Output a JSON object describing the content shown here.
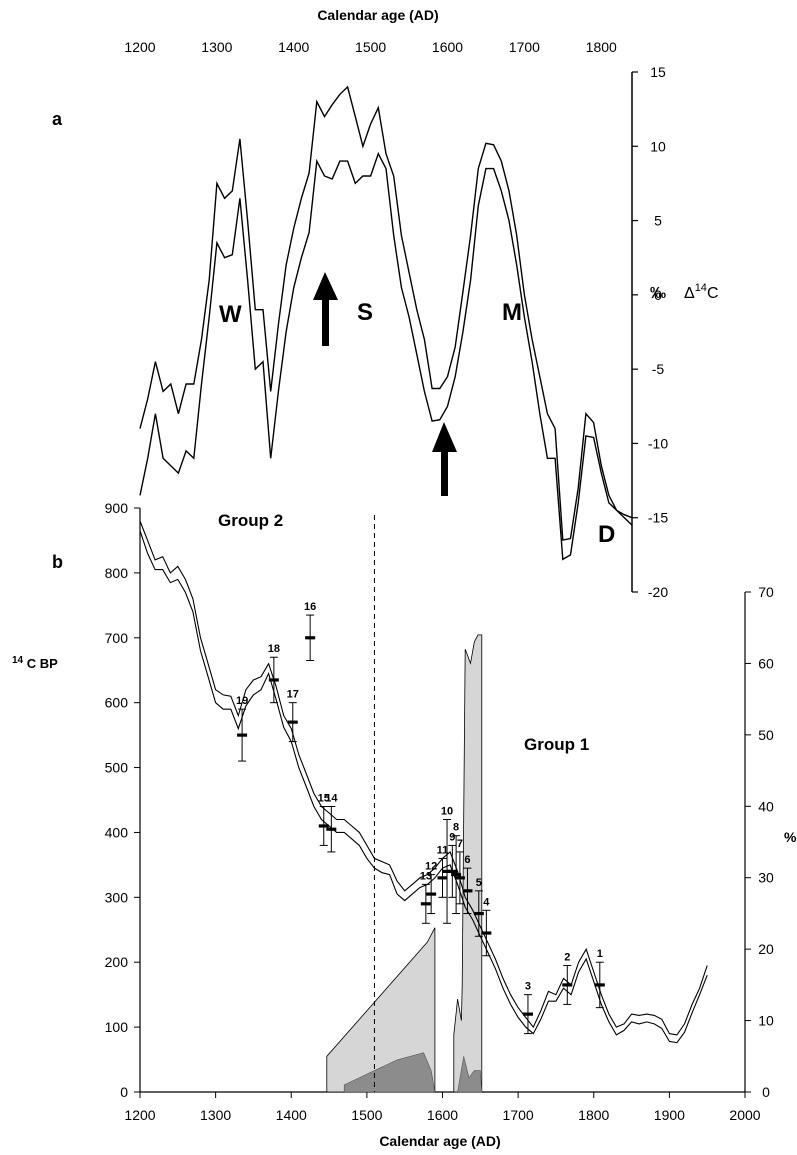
{
  "chart_data": [
    {
      "panel": "a",
      "type": "line",
      "xlabel": "Calendar age (AD)",
      "xlim": [
        1200,
        1840
      ],
      "xticks": [
        1200,
        1300,
        1400,
        1500,
        1600,
        1700,
        1800
      ],
      "ylabel": "‰  Δ14C",
      "ylim": [
        -20,
        15
      ],
      "yticks": [
        15,
        10,
        5,
        0,
        -5,
        -10,
        -15,
        -20
      ],
      "series": [
        {
          "x": [
            1200,
            1210,
            1220,
            1230,
            1240,
            1250,
            1260,
            1270,
            1280,
            1290,
            1300,
            1310,
            1320,
            1330,
            1340,
            1350,
            1360,
            1370,
            1380,
            1390,
            1400,
            1410,
            1420,
            1430,
            1440,
            1450,
            1460,
            1470,
            1480,
            1490,
            1500,
            1510,
            1520,
            1530,
            1540,
            1550,
            1560,
            1570,
            1580,
            1590,
            1600,
            1610,
            1620,
            1630,
            1640,
            1650,
            1660,
            1670,
            1680,
            1690,
            1700,
            1710,
            1720,
            1730,
            1740,
            1750,
            1760,
            1770,
            1780,
            1790,
            1800,
            1810,
            1820,
            1830,
            1840
          ],
          "y": [
            -9,
            -7,
            -4.5,
            -6.5,
            -6,
            -8,
            -6,
            -6,
            -3,
            1,
            7.5,
            6.5,
            7,
            10.5,
            5,
            -1,
            -1,
            -6.5,
            -2,
            2,
            4.5,
            6.5,
            8.2,
            13,
            12,
            12.8,
            13.5,
            14,
            12,
            10,
            11.5,
            12.6,
            9.5,
            8,
            4,
            1.5,
            -1,
            -3,
            -6.3,
            -6.3,
            -5.5,
            -3.5,
            0.2,
            4,
            8.5,
            10.2,
            10.1,
            9,
            7,
            4,
            0,
            -3,
            -5.5,
            -8,
            -9,
            -16.5,
            -16.4,
            -13,
            -8,
            -8.6,
            -11.5,
            -13.5,
            -14.5,
            -14.8,
            -15
          ]
        },
        {
          "x": [
            1200,
            1210,
            1220,
            1230,
            1240,
            1250,
            1260,
            1270,
            1280,
            1290,
            1300,
            1310,
            1320,
            1330,
            1340,
            1350,
            1360,
            1370,
            1380,
            1390,
            1400,
            1410,
            1420,
            1430,
            1440,
            1450,
            1460,
            1470,
            1480,
            1490,
            1500,
            1510,
            1520,
            1530,
            1540,
            1550,
            1560,
            1570,
            1580,
            1590,
            1600,
            1610,
            1620,
            1630,
            1640,
            1650,
            1660,
            1670,
            1680,
            1690,
            1700,
            1710,
            1720,
            1730,
            1740,
            1750,
            1760,
            1770,
            1780,
            1790,
            1800,
            1810,
            1820,
            1830,
            1840
          ],
          "y": [
            -13.5,
            -11,
            -8,
            -11,
            -11.5,
            -12,
            -10.5,
            -11,
            -6,
            -1.5,
            3.5,
            2.5,
            2.7,
            6.5,
            1,
            -5,
            -4.5,
            -11,
            -6.5,
            -2.5,
            0.5,
            2.5,
            4.2,
            9,
            8,
            7.8,
            9,
            9,
            7.5,
            8,
            8,
            9.5,
            8.5,
            4,
            0.5,
            -1.5,
            -4,
            -6.5,
            -8.5,
            -8.4,
            -7.5,
            -5.5,
            -2.5,
            1,
            6,
            8.5,
            8.5,
            7,
            5,
            2,
            -1.5,
            -4.5,
            -8,
            -11,
            -11,
            -17.8,
            -17.5,
            -14,
            -9.5,
            -9.6,
            -12,
            -14,
            -14.5,
            -15,
            -15.5
          ]
        }
      ],
      "annotations": [
        "W",
        "S",
        "M",
        "D"
      ],
      "panel_label": "a"
    },
    {
      "panel": "b",
      "type": "line",
      "xlabel": "Calendar age (AD)",
      "xlim": [
        1200,
        2000
      ],
      "xticks": [
        1200,
        1300,
        1400,
        1500,
        1600,
        1700,
        1800,
        1900,
        2000
      ],
      "ylabel": "14 C BP",
      "ylim": [
        0,
        900
      ],
      "yticks": [
        0,
        100,
        200,
        300,
        400,
        500,
        600,
        700,
        800,
        900
      ],
      "y2label": "%",
      "y2lim": [
        0,
        70
      ],
      "y2ticks": [
        0,
        10,
        20,
        30,
        40,
        50,
        60,
        70
      ],
      "divider_x": 1510,
      "group_labels": [
        "Group 2",
        "Group 1"
      ],
      "series": [
        {
          "x": [
            1200,
            1210,
            1220,
            1230,
            1240,
            1250,
            1260,
            1270,
            1280,
            1290,
            1300,
            1310,
            1320,
            1330,
            1340,
            1350,
            1360,
            1370,
            1380,
            1390,
            1400,
            1410,
            1420,
            1430,
            1440,
            1450,
            1460,
            1470,
            1480,
            1490,
            1500,
            1510,
            1520,
            1530,
            1540,
            1550,
            1560,
            1570,
            1580,
            1590,
            1600,
            1610,
            1620,
            1630,
            1640,
            1650,
            1660,
            1670,
            1680,
            1690,
            1700,
            1710,
            1720,
            1730,
            1740,
            1750,
            1760,
            1770,
            1780,
            1790,
            1800,
            1810,
            1820,
            1830,
            1840,
            1850,
            1860,
            1870,
            1880,
            1890,
            1900,
            1910,
            1920,
            1930,
            1940,
            1950
          ],
          "y": [
            880,
            850,
            820,
            825,
            800,
            810,
            790,
            760,
            700,
            660,
            620,
            612,
            610,
            580,
            620,
            635,
            640,
            660,
            625,
            580,
            560,
            520,
            490,
            460,
            440,
            430,
            420,
            420,
            410,
            400,
            380,
            360,
            355,
            350,
            325,
            310,
            320,
            330,
            335,
            345,
            360,
            370,
            340,
            300,
            280,
            255,
            230,
            205,
            175,
            150,
            130,
            115,
            100,
            125,
            155,
            150,
            175,
            165,
            200,
            220,
            185,
            150,
            120,
            100,
            105,
            120,
            118,
            120,
            118,
            112,
            90,
            88,
            105,
            135,
            160,
            195
          ]
        },
        {
          "x": [
            1200,
            1210,
            1220,
            1230,
            1240,
            1250,
            1260,
            1270,
            1280,
            1290,
            1300,
            1310,
            1320,
            1330,
            1340,
            1350,
            1360,
            1370,
            1380,
            1390,
            1400,
            1410,
            1420,
            1430,
            1440,
            1450,
            1460,
            1470,
            1480,
            1490,
            1500,
            1510,
            1520,
            1530,
            1540,
            1550,
            1560,
            1570,
            1580,
            1590,
            1600,
            1610,
            1620,
            1630,
            1640,
            1650,
            1660,
            1670,
            1680,
            1690,
            1700,
            1710,
            1720,
            1730,
            1740,
            1750,
            1760,
            1770,
            1780,
            1790,
            1800,
            1810,
            1820,
            1830,
            1840,
            1850,
            1860,
            1870,
            1880,
            1890,
            1900,
            1910,
            1920,
            1930,
            1940,
            1950
          ],
          "y": [
            865,
            830,
            805,
            805,
            785,
            790,
            770,
            740,
            680,
            640,
            600,
            590,
            590,
            560,
            595,
            612,
            620,
            645,
            605,
            562,
            540,
            500,
            470,
            440,
            420,
            410,
            400,
            400,
            390,
            380,
            360,
            345,
            338,
            335,
            305,
            295,
            305,
            315,
            320,
            330,
            345,
            350,
            320,
            285,
            265,
            240,
            215,
            190,
            160,
            135,
            115,
            100,
            90,
            112,
            140,
            140,
            160,
            150,
            185,
            205,
            170,
            135,
            108,
            88,
            95,
            108,
            105,
            108,
            105,
            98,
            78,
            76,
            92,
            122,
            150,
            180
          ]
        }
      ],
      "samples": [
        {
          "label": "1",
          "x": 1808,
          "y": 165,
          "err": 35
        },
        {
          "label": "2",
          "x": 1765,
          "y": 165,
          "err": 30
        },
        {
          "label": "3",
          "x": 1713,
          "y": 120,
          "err": 30
        },
        {
          "label": "4",
          "x": 1658,
          "y": 245,
          "err": 35
        },
        {
          "label": "5",
          "x": 1648,
          "y": 275,
          "err": 35
        },
        {
          "label": "6",
          "x": 1633,
          "y": 310,
          "err": 35
        },
        {
          "label": "7",
          "x": 1623,
          "y": 330,
          "err": 40
        },
        {
          "label": "8",
          "x": 1618,
          "y": 335,
          "err": 60
        },
        {
          "label": "9",
          "x": 1613,
          "y": 340,
          "err": 40
        },
        {
          "label": "10",
          "x": 1606,
          "y": 340,
          "err": 80
        },
        {
          "label": "11",
          "x": 1600,
          "y": 330,
          "err": 30
        },
        {
          "label": "12",
          "x": 1585,
          "y": 305,
          "err": 30
        },
        {
          "label": "13",
          "x": 1578,
          "y": 290,
          "err": 30
        },
        {
          "label": "14",
          "x": 1453,
          "y": 405,
          "err": 35
        },
        {
          "label": "15",
          "x": 1443,
          "y": 410,
          "err": 30
        },
        {
          "label": "16",
          "x": 1425,
          "y": 700,
          "err": 35
        },
        {
          "label": "17",
          "x": 1402,
          "y": 570,
          "err": 30
        },
        {
          "label": "18",
          "x": 1377,
          "y": 635,
          "err": 35
        },
        {
          "label": "19",
          "x": 1335,
          "y": 550,
          "err": 40
        }
      ],
      "shaded_light": [
        [
          [
            1447,
            0
          ],
          [
            1447,
            5
          ],
          [
            1580,
            21
          ],
          [
            1590,
            23
          ],
          [
            1590,
            0
          ]
        ],
        [
          [
            1615,
            0
          ],
          [
            1615,
            8
          ],
          [
            1620,
            13
          ],
          [
            1625,
            10
          ],
          [
            1626,
            15
          ],
          [
            1630,
            62
          ],
          [
            1637,
            60
          ],
          [
            1642,
            63
          ],
          [
            1647,
            64
          ],
          [
            1652,
            64
          ],
          [
            1652,
            0
          ]
        ]
      ],
      "shaded_dark": [
        [
          [
            1470,
            0
          ],
          [
            1470,
            1
          ],
          [
            1500,
            2.5
          ],
          [
            1540,
            4.5
          ],
          [
            1575,
            5.5
          ],
          [
            1585,
            3
          ],
          [
            1590,
            0
          ]
        ],
        [
          [
            1620,
            0
          ],
          [
            1628,
            5
          ],
          [
            1635,
            2
          ],
          [
            1642,
            3
          ],
          [
            1650,
            3
          ],
          [
            1652,
            0
          ]
        ]
      ],
      "panel_label": "b"
    }
  ]
}
